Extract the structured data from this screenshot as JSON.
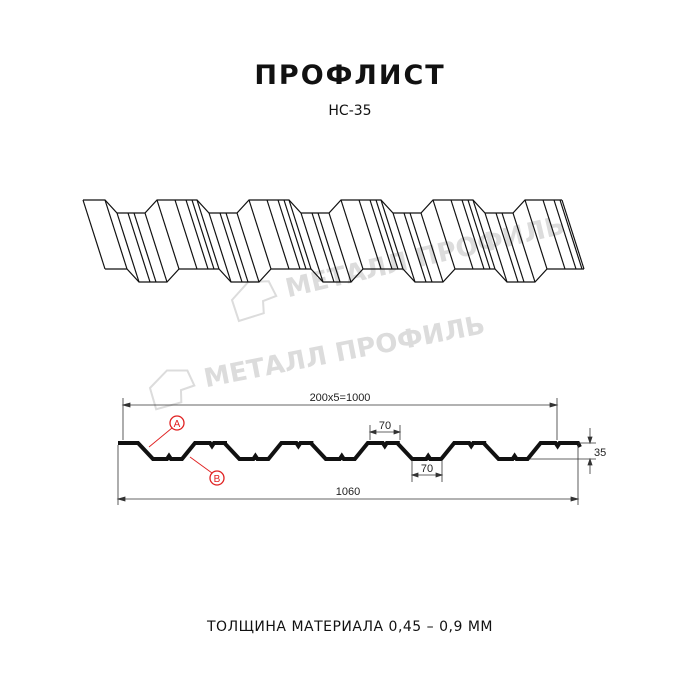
{
  "header": {
    "title": "ПРОФЛИСТ",
    "subtitle": "НС-35"
  },
  "watermark": {
    "text": "МЕТАЛЛ ПРОФИЛЬ"
  },
  "drawing": {
    "dimension_pitch": "200x5=1000",
    "dimension_total": "1060",
    "dimension_height": "35",
    "dimension_top_width": "70",
    "dimension_bottom_width": "70",
    "marker_a": "A",
    "marker_b": "B",
    "marker_color": "#e02020",
    "line_color": "#111111"
  },
  "footer": {
    "text": "ТОЛЩИНА МАТЕРИАЛА 0,45 – 0,9 ММ"
  }
}
